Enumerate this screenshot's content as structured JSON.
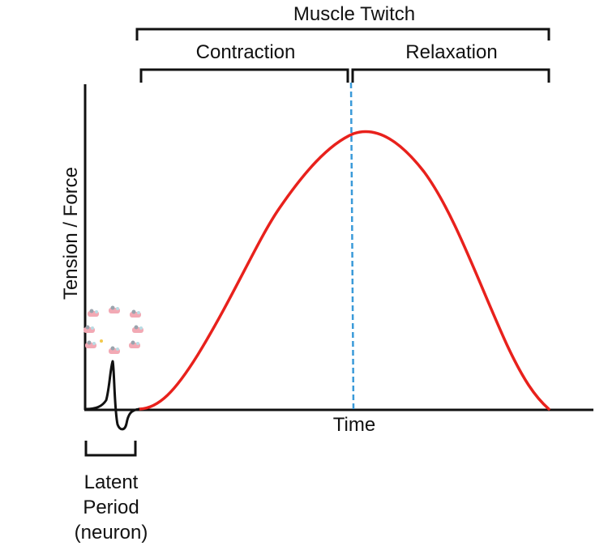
{
  "title": "Muscle Twitch",
  "phases": {
    "contraction": "Contraction",
    "relaxation": "Relaxation"
  },
  "axes": {
    "x_label": "Time",
    "y_label": "Tension  / Force"
  },
  "latent_period": {
    "line1": "Latent",
    "line2": "Period",
    "line3": "(neuron)"
  },
  "colors": {
    "twitch_curve": "#e8211c",
    "peak_divider": "#3a9ad9",
    "axis": "#111111",
    "neuron_spike": "#111111"
  },
  "icons": {
    "synapse_cluster": "neurotransmitter-vesicles-icon"
  }
}
